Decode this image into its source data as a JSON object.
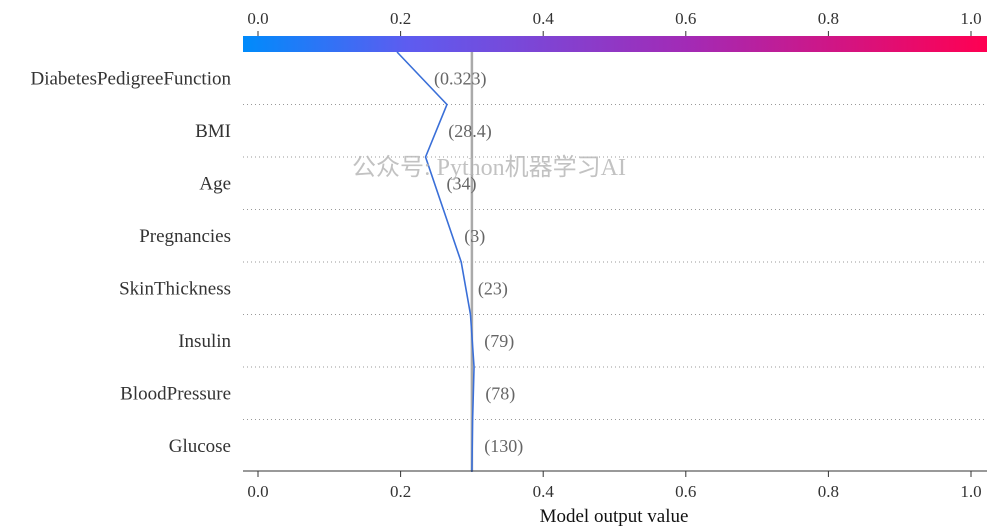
{
  "chart_data": {
    "type": "line",
    "xlabel": "Model output value",
    "xlim": [
      0.0,
      1.0
    ],
    "x_ticks": [
      "0.0",
      "0.2",
      "0.4",
      "0.6",
      "0.8",
      "1.0"
    ],
    "tick_values": [
      0.0,
      0.2,
      0.4,
      0.6,
      0.8,
      1.0
    ],
    "base_value": 0.3,
    "features": [
      {
        "name": "DiabetesPedigreeFunction",
        "value_label": "(0.323)"
      },
      {
        "name": "BMI",
        "value_label": "(28.4)"
      },
      {
        "name": "Age",
        "value_label": "(34)"
      },
      {
        "name": "Pregnancies",
        "value_label": "(3)"
      },
      {
        "name": "SkinThickness",
        "value_label": "(23)"
      },
      {
        "name": "Insulin",
        "value_label": "(79)"
      },
      {
        "name": "BloodPressure",
        "value_label": "(78)"
      },
      {
        "name": "Glucose",
        "value_label": "(130)"
      }
    ],
    "path_x": [
      0.195,
      0.265,
      0.235,
      0.26,
      0.285,
      0.298,
      0.303,
      0.301,
      0.3
    ],
    "colorbar_colors": [
      "#008bfb",
      "#5d5cf0",
      "#a32ab5",
      "#ff0052"
    ],
    "line_color": "#3a6fd8",
    "base_line_color": "#aaaaaa",
    "grid": "dotted horizontal separators",
    "watermark": "公众号: Python机器学习AI"
  }
}
